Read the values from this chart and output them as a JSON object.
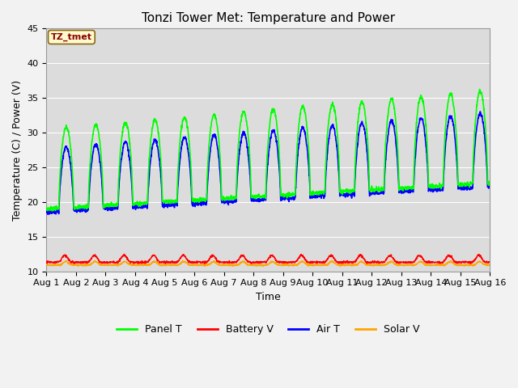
{
  "title": "Tonzi Tower Met: Temperature and Power",
  "xlabel": "Time",
  "ylabel": "Temperature (C) / Power (V)",
  "annotation": "TZ_tmet",
  "ylim": [
    10,
    45
  ],
  "xlim": [
    0,
    15
  ],
  "xtick_labels": [
    "Aug 1",
    "Aug 2",
    "Aug 3",
    "Aug 4",
    "Aug 5",
    "Aug 6",
    "Aug 7",
    "Aug 8",
    "Aug 9",
    "Aug 10",
    "Aug 11",
    "Aug 12",
    "Aug 13",
    "Aug 14",
    "Aug 15",
    "Aug 16"
  ],
  "xtick_positions": [
    0,
    1,
    2,
    3,
    4,
    5,
    6,
    7,
    8,
    9,
    10,
    11,
    12,
    13,
    14,
    15
  ],
  "ytick_positions": [
    10,
    15,
    20,
    25,
    30,
    35,
    40,
    45
  ],
  "panel_T_color": "#00FF00",
  "battery_V_color": "#FF0000",
  "air_T_color": "#0000FF",
  "solar_V_color": "#FFA500",
  "bg_color": "#DCDCDC",
  "grid_color": "#FFFFFF",
  "legend_labels": [
    "Panel T",
    "Battery V",
    "Air T",
    "Solar V"
  ],
  "title_fontsize": 11,
  "label_fontsize": 9,
  "tick_fontsize": 8,
  "linewidth_main": 1.2,
  "linewidth_small": 1.0
}
